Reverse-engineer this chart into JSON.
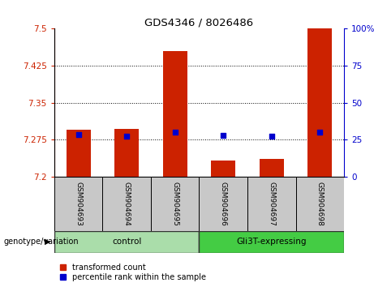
{
  "title": "GDS4346 / 8026486",
  "samples": [
    "GSM904693",
    "GSM904694",
    "GSM904695",
    "GSM904696",
    "GSM904697",
    "GSM904698"
  ],
  "red_values": [
    7.295,
    7.297,
    7.455,
    7.232,
    7.236,
    7.5
  ],
  "blue_values": [
    7.285,
    7.282,
    7.29,
    7.284,
    7.282,
    7.29
  ],
  "ylim": [
    7.2,
    7.5
  ],
  "yticks": [
    7.2,
    7.275,
    7.35,
    7.425,
    7.5
  ],
  "ytick_labels": [
    "7.2",
    "7.275",
    "7.35",
    "7.425",
    "7.5"
  ],
  "right_yticks": [
    0,
    25,
    50,
    75,
    100
  ],
  "right_ytick_labels": [
    "0",
    "25",
    "50",
    "75",
    "100%"
  ],
  "dotted_lines": [
    7.275,
    7.35,
    7.425
  ],
  "groups": [
    {
      "label": "control",
      "indices": [
        0,
        1,
        2
      ],
      "color": "#AADDAA"
    },
    {
      "label": "Gli3T-expressing",
      "indices": [
        3,
        4,
        5
      ],
      "color": "#44CC44"
    }
  ],
  "bar_width": 0.5,
  "red_color": "#CC2200",
  "blue_color": "#0000CC",
  "left_axis_color": "#CC2200",
  "right_axis_color": "#0000CC",
  "sample_bg": "#C8C8C8",
  "group_label": "genotype/variation",
  "legend_red": "transformed count",
  "legend_blue": "percentile rank within the sample"
}
